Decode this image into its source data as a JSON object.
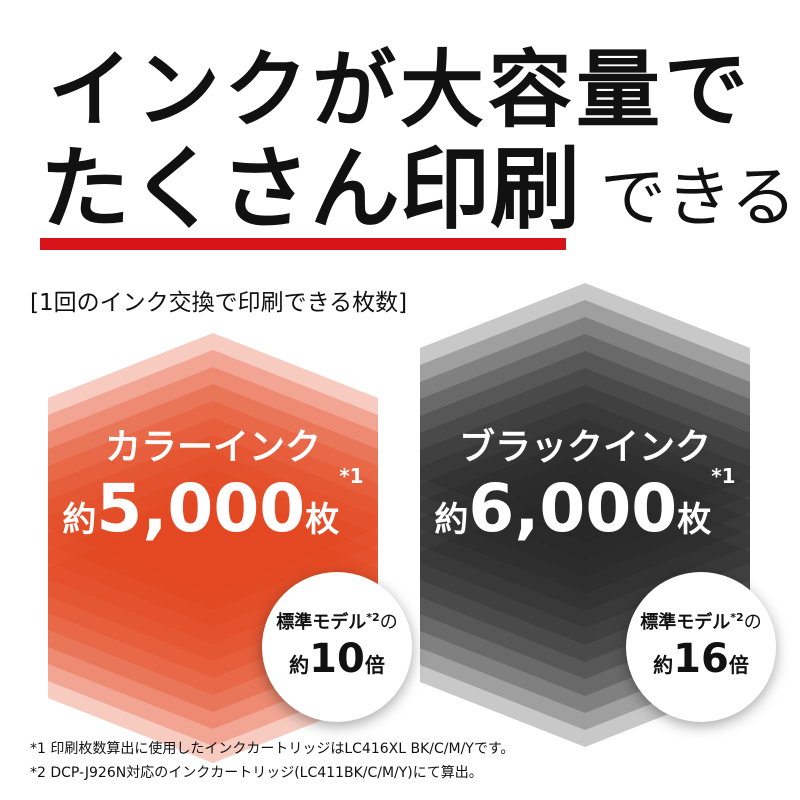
{
  "headline": {
    "line1": "インクが大容量で",
    "line2_bold": "たくさん印刷",
    "line2_rest": "できる"
  },
  "caption": "[1回のインク交換で印刷できる枚数]",
  "colors": {
    "accent_red": "#d8141b",
    "color_ink": "#e2461d",
    "black_ink": "#222222"
  },
  "color_ink": {
    "name": "カラーインク",
    "prefix": "約",
    "value": "5,000",
    "suffix": "枚",
    "note": "*1",
    "badge": {
      "text": "標準モデル",
      "note": "*2",
      "particle": "の",
      "prefix": "約",
      "value": "10",
      "suffix": "倍"
    }
  },
  "black_ink": {
    "name": "ブラックインク",
    "prefix": "約",
    "value": "6,000",
    "suffix": "枚",
    "note": "*1",
    "badge": {
      "text": "標準モデル",
      "note": "*2",
      "particle": "の",
      "prefix": "約",
      "value": "16",
      "suffix": "倍"
    }
  },
  "footnotes": [
    "*1 印刷枚数算出に使用したインクカートリッジはLC416XL BK/C/M/Yです。",
    "*2 DCP-J926N対応のインクカートリッジ(LC411BK/C/M/Y)にて算出。"
  ]
}
